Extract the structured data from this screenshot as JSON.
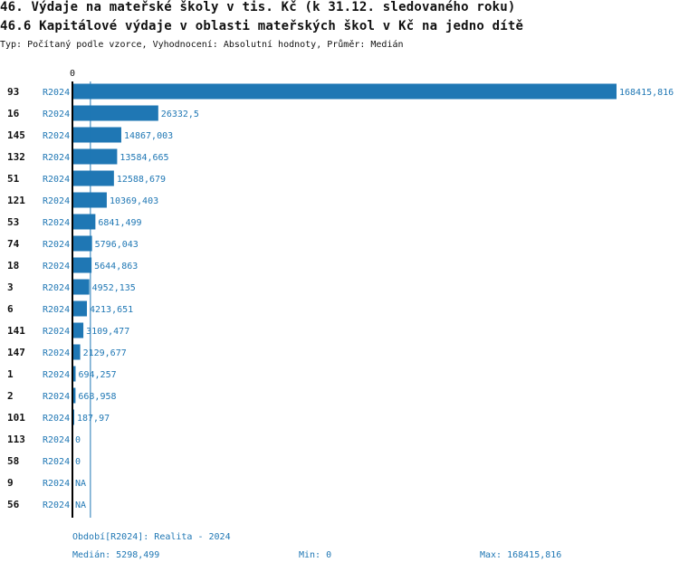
{
  "title": "46. Výdaje na mateřské školy v tis. Kč (k 31.12. sledovaného roku)",
  "subtitle": "46.6 Kapitálové výdaje v oblasti mateřských škol v Kč na jedno dítě",
  "description": "Typ: Počítaný podle vzorce, Vyhodnocení: Absolutní hodnoty, Průměr: Medián",
  "chart_data": {
    "type": "bar",
    "orientation": "horizontal",
    "axis_zero_label": "0",
    "xlim": [
      0,
      168415.816
    ],
    "categories": [
      "93",
      "16",
      "145",
      "132",
      "51",
      "121",
      "53",
      "74",
      "18",
      "3",
      "6",
      "141",
      "147",
      "1",
      "2",
      "101",
      "113",
      "58",
      "9",
      "56"
    ],
    "period": "R2024",
    "values": [
      168415.816,
      26332.5,
      14867.003,
      13584.665,
      12588.679,
      10369.403,
      6841.499,
      5796.043,
      5644.863,
      4952.135,
      4213.651,
      3109.477,
      2129.677,
      694.257,
      668.958,
      187.97,
      0,
      0,
      null,
      null
    ],
    "labels": [
      "168415,816",
      "26332,5",
      "14867,003",
      "13584,665",
      "12588,679",
      "10369,403",
      "6841,499",
      "5796,043",
      "5644,863",
      "4952,135",
      "4213,651",
      "3109,477",
      "2129,677",
      "694,257",
      "668,958",
      "187,97",
      "0",
      "0",
      "NA",
      "NA"
    ],
    "median": 5298.499,
    "bar_color": "#1f77b4"
  },
  "footer": {
    "period_legend": "Období[R2024]: Realita - 2024",
    "median": "Medián: 5298,499",
    "min": "Min: 0",
    "max": "Max: 168415,816"
  }
}
